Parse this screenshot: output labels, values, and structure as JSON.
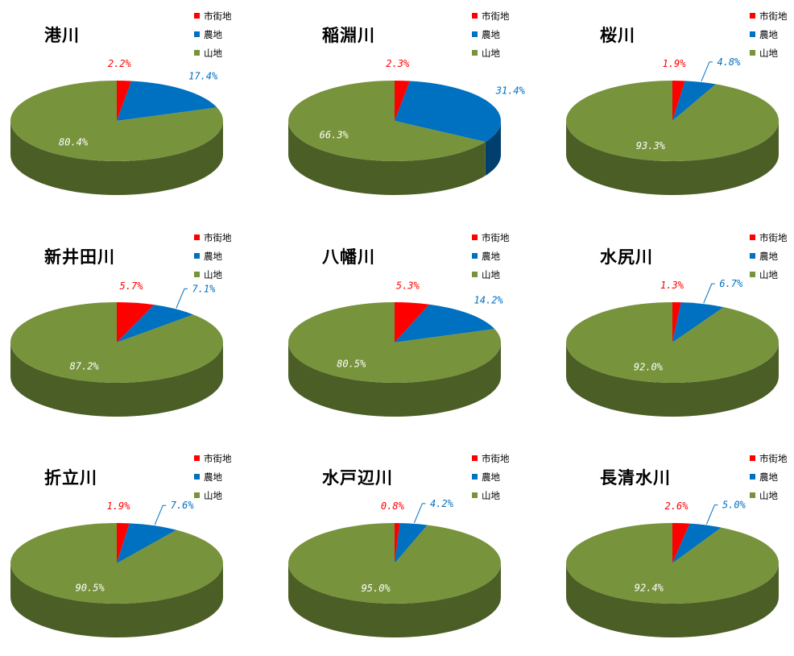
{
  "legend_labels": [
    "市街地",
    "農地",
    "山地"
  ],
  "colors": {
    "series": [
      "#ff0000",
      "#0070c0",
      "#77933c"
    ],
    "side": [
      "#a00000",
      "#003f6e",
      "#4b5e26"
    ],
    "label": [
      "#ff0000",
      "#0070c0",
      "#ffffff"
    ]
  },
  "chart_data": [
    {
      "type": "pie",
      "title": "港川",
      "categories": [
        "市街地",
        "農地",
        "山地"
      ],
      "values": [
        2.2,
        17.4,
        80.4
      ],
      "data_labels": [
        "2.2%",
        "17.4%",
        "80.4%"
      ],
      "legend_position": "top-right",
      "style": "3d"
    },
    {
      "type": "pie",
      "title": "稲淵川",
      "categories": [
        "市街地",
        "農地",
        "山地"
      ],
      "values": [
        2.3,
        31.4,
        66.3
      ],
      "data_labels": [
        "2.3%",
        "31.4%",
        "66.3%"
      ],
      "legend_position": "top-right",
      "style": "3d"
    },
    {
      "type": "pie",
      "title": "桜川",
      "categories": [
        "市街地",
        "農地",
        "山地"
      ],
      "values": [
        1.9,
        4.8,
        93.3
      ],
      "data_labels": [
        "1.9%",
        "4.8%",
        "93.3%"
      ],
      "legend_position": "top-right",
      "style": "3d"
    },
    {
      "type": "pie",
      "title": "新井田川",
      "categories": [
        "市街地",
        "農地",
        "山地"
      ],
      "values": [
        5.7,
        7.1,
        87.2
      ],
      "data_labels": [
        "5.7%",
        "7.1%",
        "87.2%"
      ],
      "legend_position": "top-right",
      "style": "3d"
    },
    {
      "type": "pie",
      "title": "八幡川",
      "categories": [
        "市街地",
        "農地",
        "山地"
      ],
      "values": [
        5.3,
        14.2,
        80.5
      ],
      "data_labels": [
        "5.3%",
        "14.2%",
        "80.5%"
      ],
      "legend_position": "top-right",
      "style": "3d"
    },
    {
      "type": "pie",
      "title": "水尻川",
      "categories": [
        "市街地",
        "農地",
        "山地"
      ],
      "values": [
        1.3,
        6.7,
        92.0
      ],
      "data_labels": [
        "1.3%",
        "6.7%",
        "92.0%"
      ],
      "legend_position": "top-right",
      "style": "3d"
    },
    {
      "type": "pie",
      "title": "折立川",
      "categories": [
        "市街地",
        "農地",
        "山地"
      ],
      "values": [
        1.9,
        7.6,
        90.5
      ],
      "data_labels": [
        "1.9%",
        "7.6%",
        "90.5%"
      ],
      "legend_position": "top-right",
      "style": "3d"
    },
    {
      "type": "pie",
      "title": "水戸辺川",
      "categories": [
        "市街地",
        "農地",
        "山地"
      ],
      "values": [
        0.8,
        4.2,
        95.0
      ],
      "data_labels": [
        "0.8%",
        "4.2%",
        "95.0%"
      ],
      "legend_position": "top-right",
      "style": "3d"
    },
    {
      "type": "pie",
      "title": "長清水川",
      "categories": [
        "市街地",
        "農地",
        "山地"
      ],
      "values": [
        2.6,
        5.0,
        92.4
      ],
      "data_labels": [
        "2.6%",
        "5.0%",
        "92.4%"
      ],
      "legend_position": "top-right",
      "style": "3d"
    }
  ]
}
